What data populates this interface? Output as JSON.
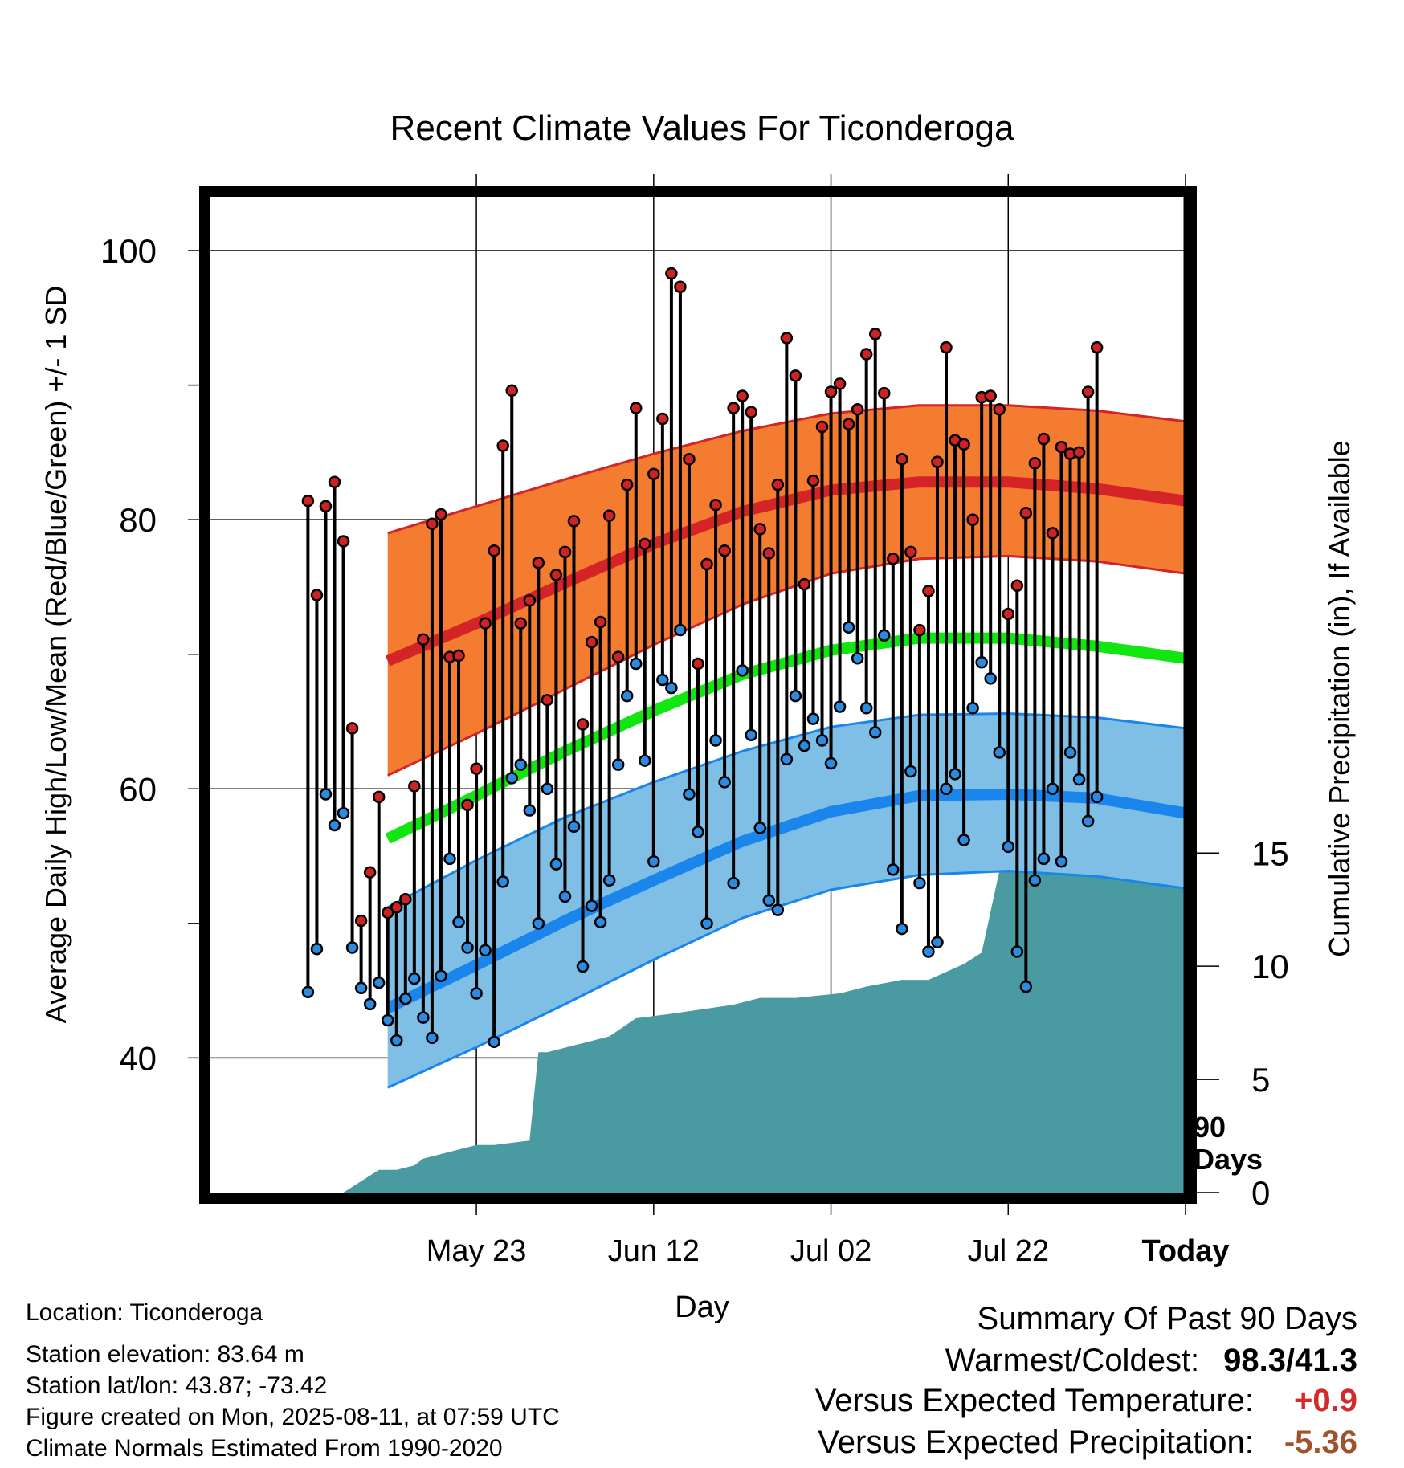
{
  "chart_data": {
    "type": "line",
    "title": "Recent Climate Values For Ticonderoga",
    "xlabel": "Day",
    "ylabel": "Average Daily High/Low/Mean (Red/Blue/Green) +/- 1 SD",
    "y2label": "Cumulative Precipitation (in), If Available",
    "ylim": [
      30,
      104
    ],
    "y2lim": [
      0,
      44
    ],
    "yticks": [
      {
        "v": 40,
        "label": "40"
      },
      {
        "v": 60,
        "label": "60"
      },
      {
        "v": 80,
        "label": "80"
      },
      {
        "v": 100,
        "label": "100"
      }
    ],
    "y2ticks": [
      {
        "v": 0,
        "label": "0"
      },
      {
        "v": 5,
        "label": "5"
      },
      {
        "v": 10,
        "label": "10"
      },
      {
        "v": 15,
        "label": "15"
      }
    ],
    "xlim": [
      -110,
      0
    ],
    "xticks": [
      {
        "v": -80,
        "label": "May 23"
      },
      {
        "v": -60,
        "label": "Jun 12"
      },
      {
        "v": -40,
        "label": "Jul 02"
      },
      {
        "v": -20,
        "label": "Jul 22"
      },
      {
        "v": 0,
        "label": "Today"
      }
    ],
    "grid": true,
    "today_marker_label": [
      "90",
      "Days"
    ],
    "colors": {
      "high_band": "#f47c30",
      "high_line": "#d42428",
      "high_edge": "#d42428",
      "low_band": "#7fbfe6",
      "low_line": "#1a85ea",
      "low_edge": "#1a85ea",
      "mean_line": "#11e611",
      "precip": "#4a9aa2",
      "high_point": "#cf2222",
      "low_point": "#2c8ae0"
    },
    "normals": {
      "days": [
        -90,
        -80,
        -70,
        -60,
        -50,
        -40,
        -30,
        -20,
        -10,
        0,
        9
      ],
      "high": [
        69.5,
        72.3,
        75.3,
        78.2,
        80.6,
        82.2,
        82.8,
        82.8,
        82.3,
        81.4,
        80.2
      ],
      "high_upper": [
        79.0,
        81.0,
        83.0,
        84.9,
        86.6,
        87.9,
        88.5,
        88.5,
        88.1,
        87.3,
        86.3
      ],
      "high_lower": [
        61.0,
        64.1,
        67.4,
        70.7,
        73.7,
        76.0,
        77.1,
        77.3,
        76.9,
        76.0,
        75.0
      ],
      "mean": [
        56.3,
        59.5,
        62.8,
        65.8,
        68.5,
        70.3,
        71.2,
        71.2,
        70.6,
        69.7,
        68.4
      ],
      "low": [
        43.7,
        46.9,
        50.2,
        53.2,
        56.1,
        58.3,
        59.5,
        59.6,
        59.3,
        58.2,
        56.5
      ],
      "low_upper": [
        51.2,
        54.7,
        57.9,
        60.5,
        62.8,
        64.6,
        65.5,
        65.6,
        65.3,
        64.5,
        63.2
      ],
      "low_lower": [
        37.8,
        40.8,
        44.0,
        47.3,
        50.4,
        52.5,
        53.6,
        53.9,
        53.5,
        52.6,
        50.8
      ]
    },
    "daily": {
      "start_day": -99,
      "high": [
        81.4,
        74.4,
        81.0,
        82.8,
        78.4,
        64.5,
        50.2,
        53.8,
        59.4,
        50.8,
        51.2,
        51.8,
        60.2,
        71.1,
        79.7,
        80.4,
        69.8,
        69.9,
        58.8,
        61.5,
        72.3,
        77.7,
        85.5,
        89.6,
        72.3,
        74.0,
        76.8,
        66.6,
        75.9,
        77.6,
        79.9,
        64.8,
        70.9,
        72.4,
        80.3,
        69.8,
        82.6,
        88.3,
        78.2,
        83.4,
        87.5,
        98.3,
        97.3,
        84.5,
        69.3,
        76.7,
        81.1,
        77.7,
        88.3,
        89.2,
        88.0,
        79.3,
        77.5,
        82.6,
        93.5,
        90.7,
        75.2,
        82.9,
        86.9,
        89.5,
        90.1,
        87.1,
        88.2,
        92.3,
        93.8,
        89.4,
        77.1,
        84.5,
        77.6,
        71.8,
        74.7,
        84.3,
        92.8,
        85.9,
        85.6,
        80.0,
        89.1,
        89.2,
        88.2,
        73.0,
        75.1,
        80.5,
        84.2,
        86.0,
        79.0,
        85.4,
        84.9,
        85.0,
        89.5,
        92.8
      ],
      "low": [
        44.9,
        48.1,
        59.6,
        57.3,
        58.2,
        48.2,
        45.2,
        44.0,
        45.6,
        42.8,
        41.3,
        44.4,
        45.9,
        43.0,
        41.5,
        46.1,
        54.8,
        50.1,
        48.2,
        44.8,
        48.0,
        41.2,
        53.1,
        60.8,
        61.8,
        58.4,
        50.0,
        60.0,
        54.4,
        52.0,
        57.2,
        46.8,
        51.3,
        50.1,
        53.2,
        61.8,
        66.9,
        69.3,
        62.1,
        54.6,
        68.1,
        67.5,
        71.8,
        59.6,
        56.8,
        50.0,
        63.6,
        60.5,
        53.0,
        68.8,
        64.0,
        57.1,
        51.7,
        51.0,
        62.2,
        66.9,
        63.2,
        65.2,
        63.6,
        61.9,
        66.1,
        72.0,
        69.7,
        66.0,
        64.2,
        71.4,
        54.0,
        49.6,
        61.3,
        53.0,
        47.9,
        48.6,
        60.0,
        61.1,
        56.2,
        66.0,
        69.4,
        68.2,
        62.7,
        55.7,
        47.9,
        45.3,
        53.2,
        54.8,
        60.0,
        54.6,
        62.7,
        60.7,
        57.6,
        59.4
      ]
    },
    "precip": {
      "x": [
        -95,
        -91,
        -89,
        -87,
        -86,
        -80,
        -78,
        -74,
        -73,
        -72,
        -65,
        -62,
        -58,
        -51,
        -48,
        -44,
        -39,
        -36,
        -32,
        -29,
        -25,
        -23,
        -21,
        -16,
        -14,
        -13,
        -10,
        0,
        9
      ],
      "y": [
        0,
        1.0,
        1.0,
        1.2,
        1.5,
        2.1,
        2.1,
        2.3,
        6.2,
        6.2,
        6.9,
        7.7,
        7.9,
        8.3,
        8.6,
        8.6,
        8.8,
        9.1,
        9.4,
        9.4,
        10.1,
        10.6,
        14.2,
        14.4,
        15.1,
        15.5,
        16.4,
        16.5,
        16.5
      ]
    }
  },
  "info": {
    "location": "Location: Ticonderoga",
    "elevation": "Station elevation: 83.64 m",
    "latlon": "Station lat/lon: 43.87; -73.42",
    "created": "Figure created on Mon, 2025-08-11, at 07:59 UTC",
    "normals": "Climate Normals Estimated From 1990-2020"
  },
  "summary": {
    "title": "Summary Of Past 90 Days",
    "warm_cold_label": "Warmest/Coldest:",
    "warm_cold_value": "98.3/41.3",
    "temp_label": "Versus Expected Temperature:",
    "temp_value": "+0.9",
    "temp_color": "#d42a2a",
    "precip_label": "Versus Expected Precipitation:",
    "precip_value": "-5.36",
    "precip_color": "#a0522d"
  }
}
